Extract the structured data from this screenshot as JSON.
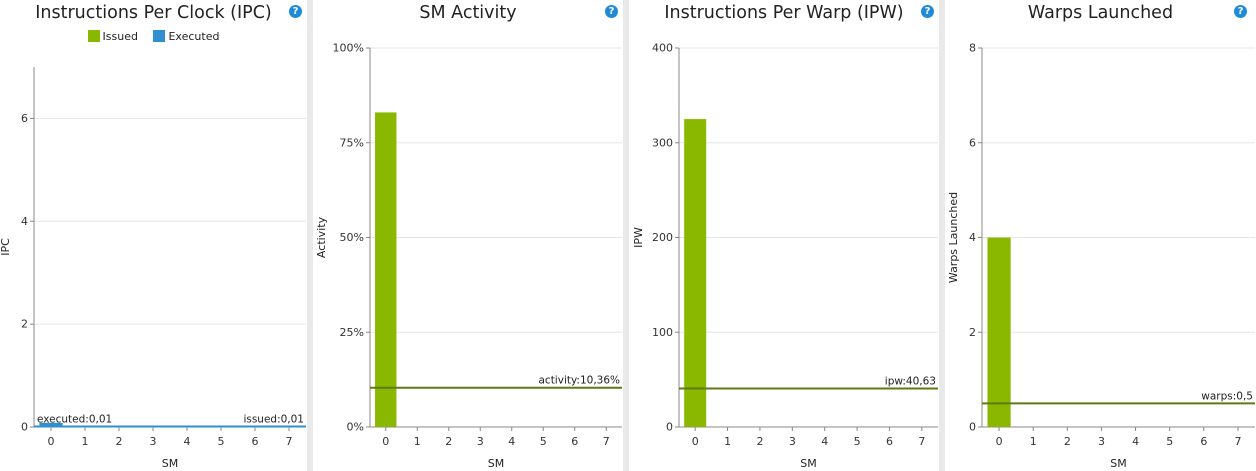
{
  "colors": {
    "bar": "#8ab800",
    "executed": "#2f8fd0",
    "refline": "#5e7a10",
    "help": "#1f8ad6"
  },
  "help_icon": "question-mark-icon",
  "chart_data": [
    {
      "type": "bar",
      "title": "Instructions Per Clock (IPC)",
      "xlabel": "SM",
      "ylabel": "IPC",
      "categories": [
        "0",
        "1",
        "2",
        "3",
        "4",
        "5",
        "6",
        "7"
      ],
      "ylim": [
        0,
        7
      ],
      "yticks": [
        {
          "v": 0,
          "label": "0"
        },
        {
          "v": 2,
          "label": "2"
        },
        {
          "v": 4,
          "label": "4"
        },
        {
          "v": 6,
          "label": "6"
        }
      ],
      "legend": [
        {
          "name": "Issued",
          "color": "#8ab800"
        },
        {
          "name": "Executed",
          "color": "#2f8fd0"
        }
      ],
      "series": [
        {
          "name": "Issued",
          "values": [
            0.08,
            0,
            0,
            0,
            0,
            0,
            0,
            0
          ],
          "color": "#8ab800"
        },
        {
          "name": "Executed",
          "values": [
            0.08,
            0,
            0,
            0,
            0,
            0,
            0,
            0
          ],
          "color": "#2f8fd0"
        }
      ],
      "reference_lines": [
        {
          "value": 0.01,
          "label": "executed:0,01",
          "align": "left",
          "color": "#2f8fd0"
        },
        {
          "value": 0.01,
          "label": "issued:0,01",
          "align": "right",
          "color": "#2f8fd0"
        }
      ],
      "grid": true
    },
    {
      "type": "bar",
      "title": "SM Activity",
      "xlabel": "SM",
      "ylabel": "Activity",
      "categories": [
        "0",
        "1",
        "2",
        "3",
        "4",
        "5",
        "6",
        "7"
      ],
      "ylim": [
        0,
        100
      ],
      "yticks": [
        {
          "v": 0,
          "label": "0%"
        },
        {
          "v": 25,
          "label": "25%"
        },
        {
          "v": 50,
          "label": "50%"
        },
        {
          "v": 75,
          "label": "75%"
        },
        {
          "v": 100,
          "label": "100%"
        }
      ],
      "series": [
        {
          "values": [
            83,
            0,
            0,
            0,
            0,
            0,
            0,
            0
          ],
          "color": "#8ab800"
        }
      ],
      "reference_lines": [
        {
          "value": 10.36,
          "label": "activity:10,36%",
          "align": "right",
          "color": "#5e7a10"
        }
      ],
      "grid": true
    },
    {
      "type": "bar",
      "title": "Instructions Per Warp (IPW)",
      "xlabel": "SM",
      "ylabel": "IPW",
      "categories": [
        "0",
        "1",
        "2",
        "3",
        "4",
        "5",
        "6",
        "7"
      ],
      "ylim": [
        0,
        400
      ],
      "yticks": [
        {
          "v": 0,
          "label": "0"
        },
        {
          "v": 100,
          "label": "100"
        },
        {
          "v": 200,
          "label": "200"
        },
        {
          "v": 300,
          "label": "300"
        },
        {
          "v": 400,
          "label": "400"
        }
      ],
      "series": [
        {
          "values": [
            325,
            0,
            0,
            0,
            0,
            0,
            0,
            0
          ],
          "color": "#8ab800"
        }
      ],
      "reference_lines": [
        {
          "value": 40.63,
          "label": "ipw:40,63",
          "align": "right",
          "color": "#5e7a10"
        }
      ],
      "grid": true
    },
    {
      "type": "bar",
      "title": "Warps Launched",
      "xlabel": "SM",
      "ylabel": "Warps Launched",
      "categories": [
        "0",
        "1",
        "2",
        "3",
        "4",
        "5",
        "6",
        "7"
      ],
      "ylim": [
        0,
        8
      ],
      "yticks": [
        {
          "v": 0,
          "label": "0"
        },
        {
          "v": 2,
          "label": "2"
        },
        {
          "v": 4,
          "label": "4"
        },
        {
          "v": 6,
          "label": "6"
        },
        {
          "v": 8,
          "label": "8"
        }
      ],
      "series": [
        {
          "values": [
            4,
            0,
            0,
            0,
            0,
            0,
            0,
            0
          ],
          "color": "#8ab800"
        }
      ],
      "reference_lines": [
        {
          "value": 0.5,
          "label": "warps:0,5",
          "align": "right",
          "color": "#5e7a10"
        }
      ],
      "grid": true
    }
  ]
}
